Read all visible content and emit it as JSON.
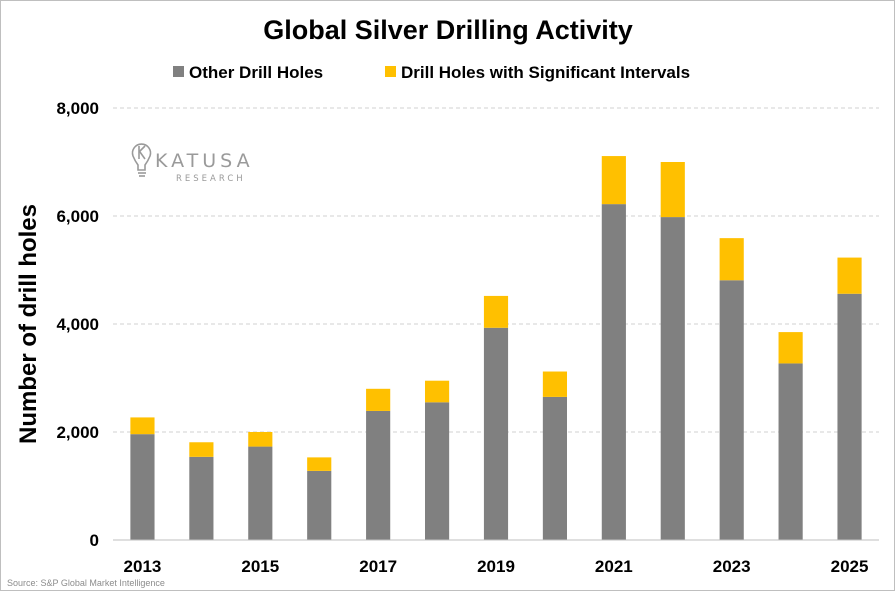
{
  "colors": {
    "other": "#808080",
    "significant": "#FFC000",
    "gridline": "#d0d0d0",
    "axis": "#bfbfbf",
    "watermark": "#9a9a9a"
  },
  "watermark": {
    "name": "KATUSA",
    "sub": "RESEARCH",
    "icon": "lightbulb-k-logo-icon"
  },
  "source_note": "Source: S&P Global Market Intelligence",
  "chart_data": {
    "type": "bar",
    "stacked": true,
    "title": "Global Silver Drilling Activity",
    "xlabel": "",
    "ylabel": "Number of drill holes",
    "ylim": [
      0,
      8000
    ],
    "yticks": [
      0,
      2000,
      4000,
      6000,
      8000
    ],
    "ytick_labels": [
      "0",
      "2,000",
      "4,000",
      "6,000",
      "8,000"
    ],
    "grid": true,
    "legend_position": "top",
    "categories": [
      "2013",
      "2014",
      "2015",
      "2016",
      "2017",
      "2018",
      "2019",
      "2020",
      "2021",
      "2022",
      "2023",
      "2024",
      "2025"
    ],
    "xtick_labels": [
      "2013",
      "",
      "2015",
      "",
      "2017",
      "",
      "2019",
      "",
      "2021",
      "",
      "2023",
      "",
      "2025"
    ],
    "series": [
      {
        "name": "Other Drill Holes",
        "values": [
          1960,
          1540,
          1730,
          1280,
          2390,
          2550,
          3930,
          2650,
          6220,
          5980,
          4810,
          3270,
          4560
        ]
      },
      {
        "name": "Drill Holes with Significant Intervals",
        "values": [
          310,
          270,
          270,
          250,
          410,
          400,
          590,
          470,
          890,
          1020,
          780,
          580,
          670
        ]
      }
    ]
  }
}
